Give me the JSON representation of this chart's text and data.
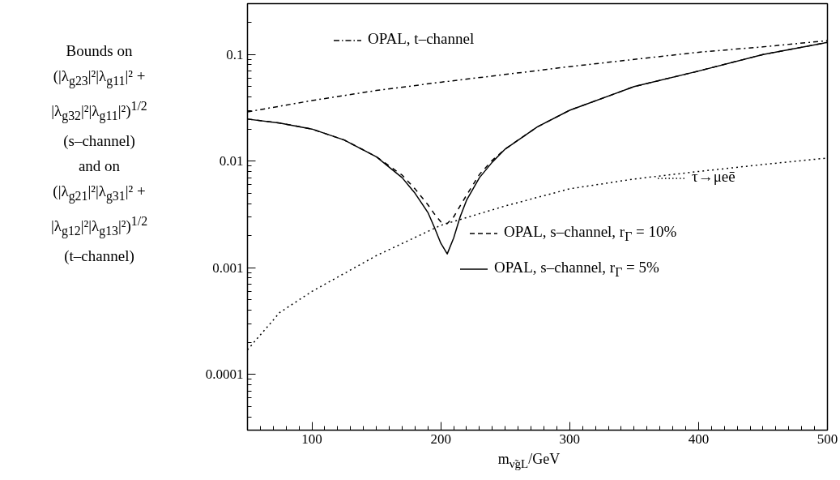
{
  "chart_data": {
    "type": "line",
    "xlabel": "m$_{ν̃gL}$/GeV",
    "log": "y",
    "xlim": [
      50,
      500
    ],
    "xticks": [
      100,
      200,
      300,
      400,
      500
    ],
    "ylim": [
      3e-05,
      0.3
    ],
    "yticks": [
      0.0001,
      0.001,
      0.01,
      0.1
    ],
    "grid": false,
    "legend": "right",
    "annotations": [
      "Bounds on\n(|λ$_{g23}$|²|λ$_{g11}$|² +\n|λ$_{g32}$|²|λ$_{g11}$|²)$^{1/2}$\n(s–channel)\nand on\n(|λ$_{g21}$|²|λ$_{g31}$|² +\n|λ$_{g12}$|²|λ$_{g13}$|²)$^{1/2}$\n(t–channel)"
    ],
    "series": [
      {
        "name": "OPAL, t–channel",
        "color": "#000000",
        "line_style": "dashdot",
        "x": [
          50,
          100,
          150,
          200,
          250,
          300,
          350,
          400,
          450,
          500
        ],
        "values": [
          0.029,
          0.037,
          0.046,
          0.055,
          0.065,
          0.077,
          0.09,
          0.105,
          0.118,
          0.135
        ]
      },
      {
        "name": "τ→μeē",
        "color": "#000000",
        "line_style": "dotted",
        "x": [
          50,
          75,
          100,
          150,
          200,
          250,
          300,
          350,
          400,
          450,
          500
        ],
        "values": [
          0.00017,
          0.00038,
          0.0006,
          0.0013,
          0.0025,
          0.0038,
          0.0055,
          0.0068,
          0.008,
          0.0093,
          0.0107
        ]
      },
      {
        "name": "OPAL, s–channel, r$_{Γ}$ = 10%",
        "color": "#000000",
        "line_style": "dashed",
        "x": [
          50,
          75,
          100,
          125,
          150,
          170,
          180,
          190,
          195,
          200,
          205,
          210,
          215,
          220,
          230,
          240,
          250,
          275,
          300,
          350,
          400,
          450,
          500
        ],
        "values": [
          0.0248,
          0.0228,
          0.02,
          0.0158,
          0.011,
          0.0074,
          0.0055,
          0.0039,
          0.0032,
          0.0027,
          0.0026,
          0.003,
          0.0038,
          0.0048,
          0.0075,
          0.0102,
          0.013,
          0.021,
          0.03,
          0.05,
          0.07,
          0.1,
          0.13
        ]
      },
      {
        "name": "OPAL, s–channel, r$_{Γ}$ = 5%",
        "color": "#000000",
        "line_style": "solid",
        "x": [
          50,
          75,
          100,
          125,
          150,
          170,
          180,
          190,
          195,
          200,
          205,
          210,
          215,
          220,
          230,
          240,
          250,
          275,
          300,
          350,
          400,
          450,
          500
        ],
        "values": [
          0.0248,
          0.0228,
          0.02,
          0.0158,
          0.011,
          0.007,
          0.005,
          0.0033,
          0.0024,
          0.0017,
          0.00135,
          0.0019,
          0.003,
          0.0043,
          0.007,
          0.0098,
          0.013,
          0.021,
          0.03,
          0.05,
          0.07,
          0.1,
          0.13
        ]
      }
    ]
  }
}
